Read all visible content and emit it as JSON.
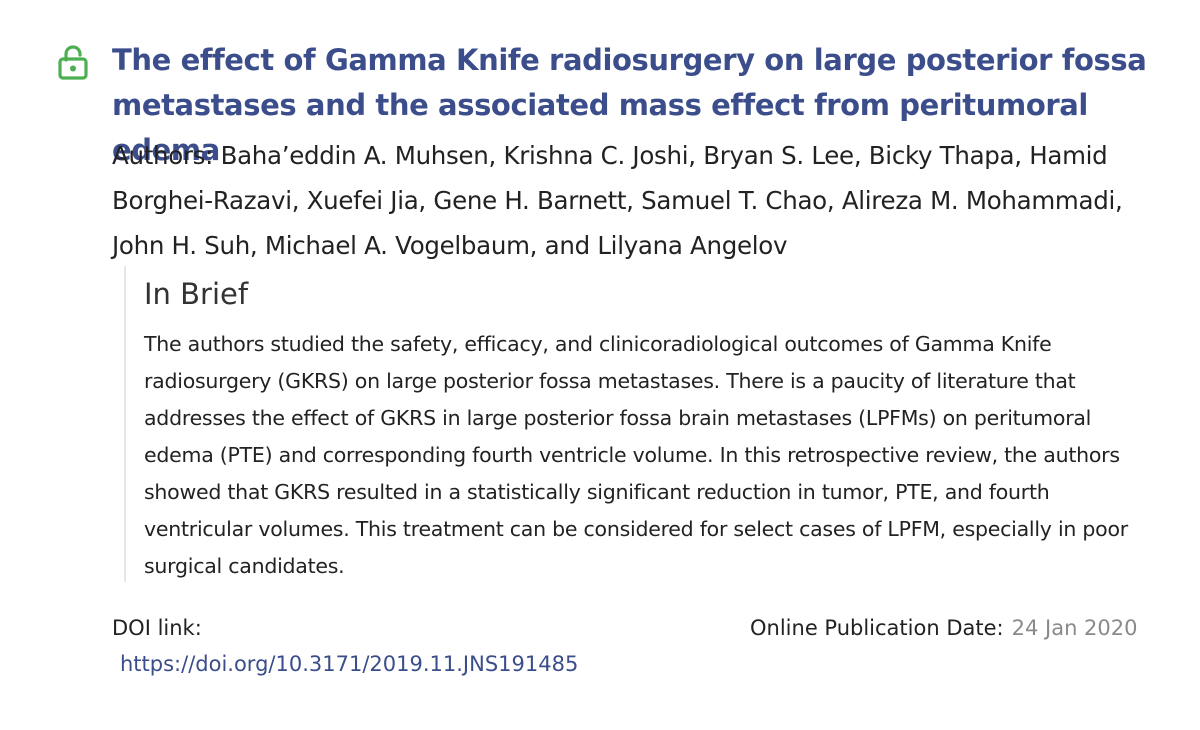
{
  "article": {
    "title": "The effect of Gamma Knife radiosurgery on large posterior fossa metastases and the associated mass effect from peritumoral edema",
    "authors": "Authors: Baha’eddin A. Muhsen, Krishna C. Joshi, Bryan S. Lee, Bicky Thapa, Hamid Borghei-Razavi, Xuefei Jia, Gene H. Barnett, Samuel T. Chao, Alireza M. Mohammadi, John H. Suh, Michael A. Vogelbaum, and Lilyana Angelov",
    "access_icon": "open-lock-icon",
    "access_color": "#4caf50",
    "title_color": "#3b4d8a"
  },
  "brief": {
    "heading": "In Brief",
    "text": "The authors studied the safety, efficacy, and clinicoradiological outcomes of Gamma Knife radiosurgery (GKRS) on large posterior fossa metastases. There is a paucity of literature that addresses the effect of GKRS in large posterior fossa brain metastases (LPFMs) on peritumoral edema (PTE) and corresponding fourth ventricle volume. In this retrospective review, the authors showed that GKRS resulted in a statistically significant reduction in tumor, PTE, and fourth ventricular volumes. This treatment can be considered for select cases of LPFM, especially in poor surgical candidates."
  },
  "doi": {
    "label": "DOI link:",
    "url": "https://doi.org/10.3171/2019.11.JNS191485"
  },
  "publication": {
    "label": "Online Publication Date:",
    "date": "24 Jan 2020"
  }
}
